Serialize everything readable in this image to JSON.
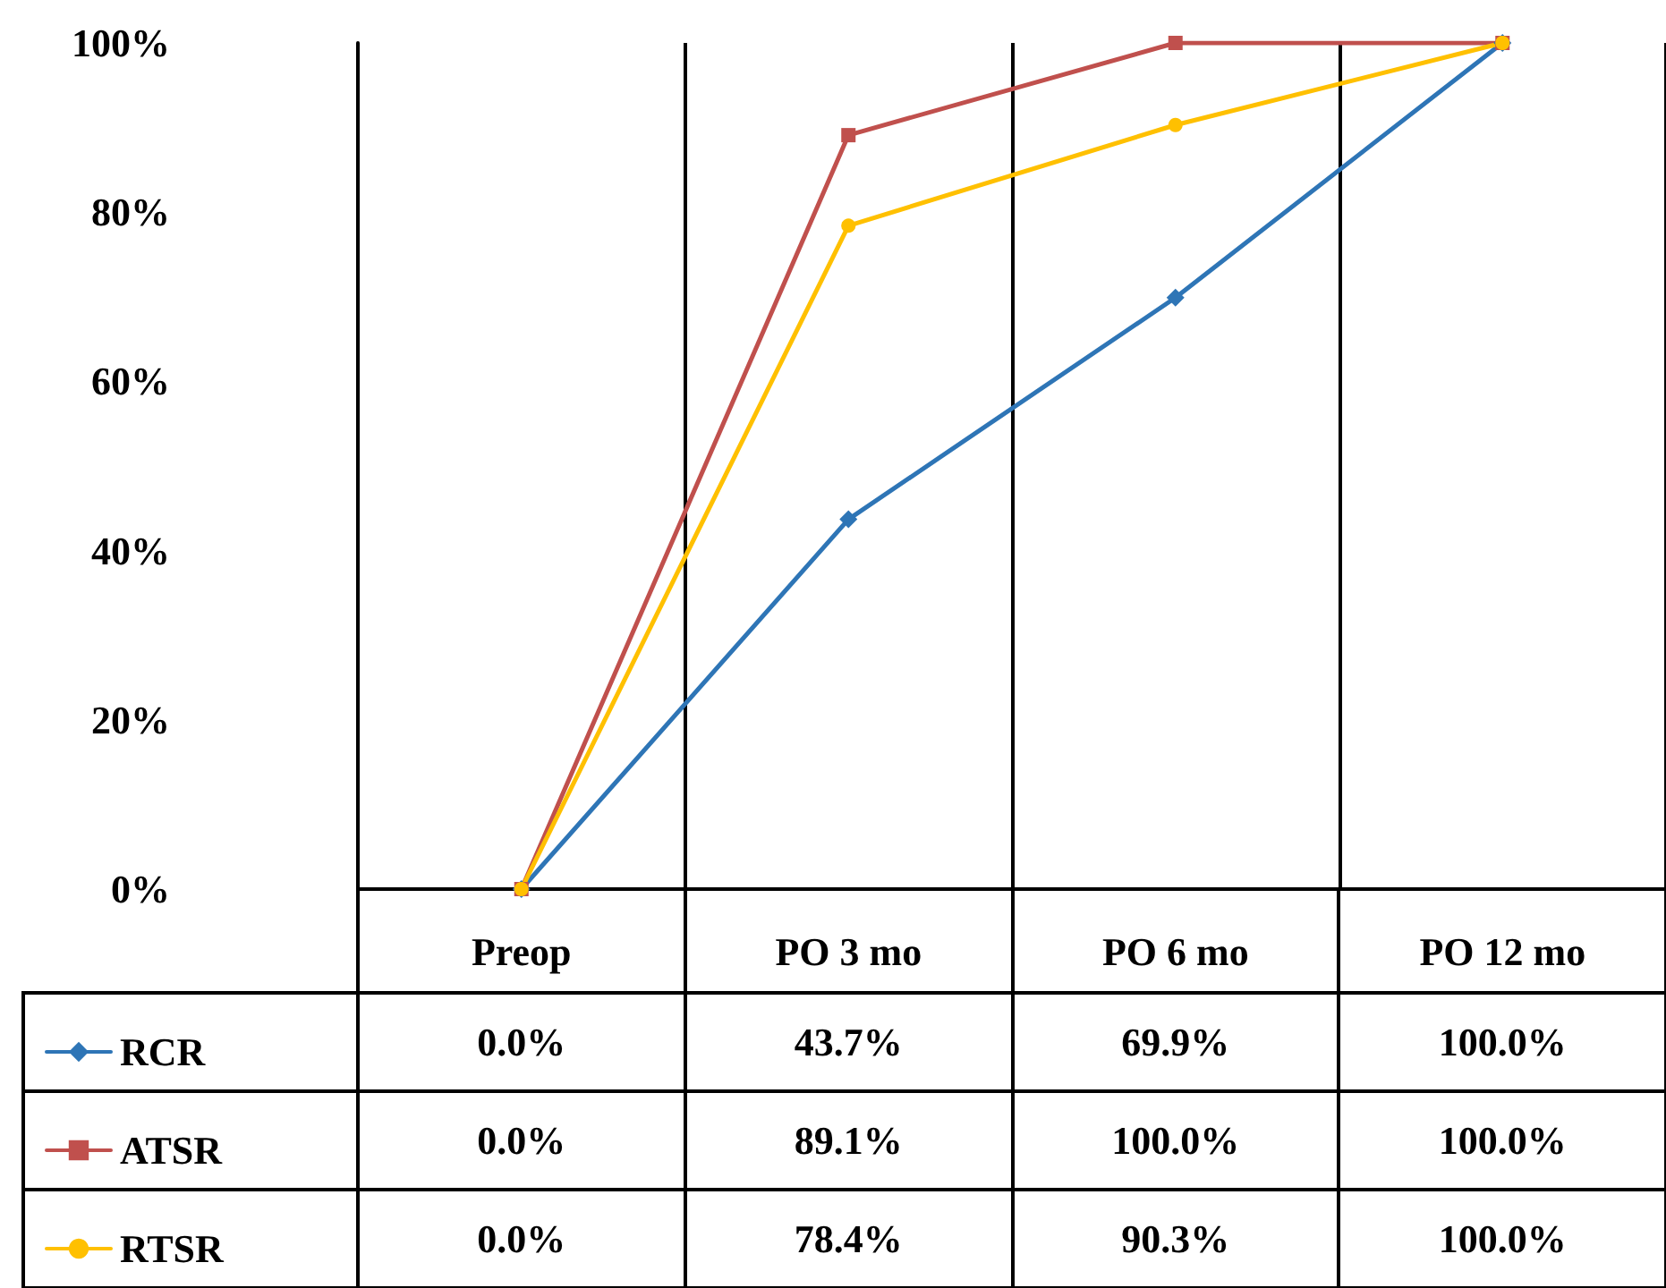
{
  "chart_data": {
    "type": "line",
    "categories": [
      "Preop",
      "PO 3 mo",
      "PO 6 mo",
      "PO 12 mo"
    ],
    "series": [
      {
        "name": "RCR",
        "color": "#2e75b6",
        "marker": "diamond",
        "values": [
          0,
          43.7,
          69.9,
          100
        ],
        "value_labels": [
          "0.0%",
          "43.7%",
          "69.9%",
          "100.0%"
        ]
      },
      {
        "name": "ATSR",
        "color": "#c0504d",
        "marker": "square",
        "values": [
          0,
          89.1,
          100,
          100
        ],
        "value_labels": [
          "0.0%",
          "89.1%",
          "100.0%",
          "100.0%"
        ]
      },
      {
        "name": "RTSR",
        "color": "#ffc000",
        "marker": "circle",
        "values": [
          0,
          78.4,
          90.3,
          100
        ],
        "value_labels": [
          "0.0%",
          "78.4%",
          "90.3%",
          "100.0%"
        ]
      }
    ],
    "ylim": [
      0,
      100
    ],
    "yticks": [
      {
        "value": 0,
        "label": "0%"
      },
      {
        "value": 20,
        "label": "20%"
      },
      {
        "value": 40,
        "label": "40%"
      },
      {
        "value": 60,
        "label": "60%"
      },
      {
        "value": 80,
        "label": "80%"
      },
      {
        "value": 100,
        "label": "100%"
      }
    ],
    "grid": "x",
    "legend": "bottom left",
    "line_style": "solid"
  }
}
